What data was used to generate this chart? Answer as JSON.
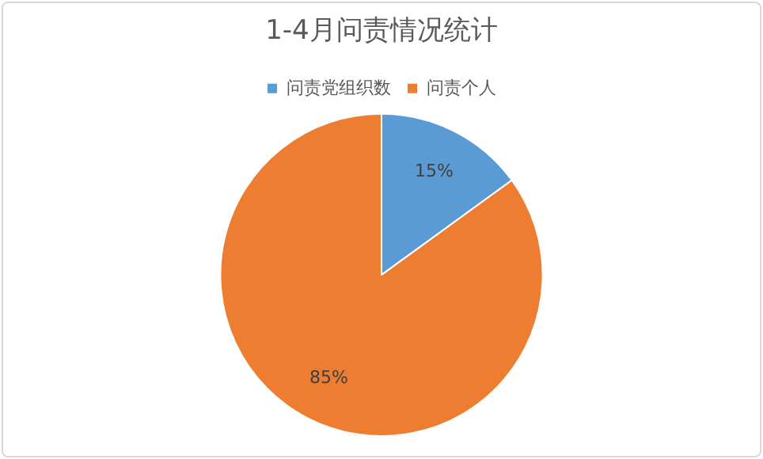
{
  "chart_data": {
    "type": "pie",
    "title": "1-4月问责情况统计",
    "categories": [
      "问责党组织数",
      "问责个人"
    ],
    "values": [
      15,
      85
    ],
    "colors": [
      "#5b9bd5",
      "#ed7d31"
    ],
    "value_labels": [
      "15%",
      "85%"
    ],
    "legend": "top"
  }
}
